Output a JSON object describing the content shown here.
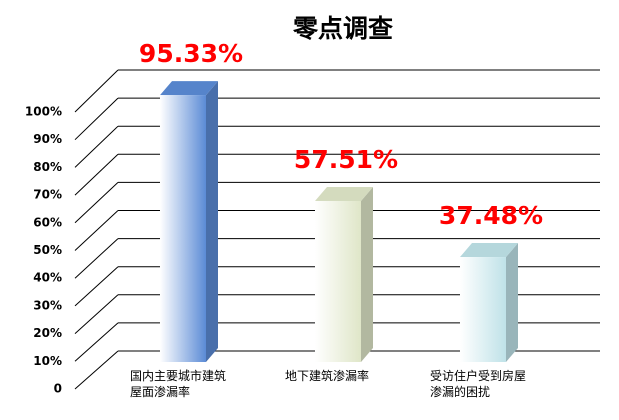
{
  "chart_data": {
    "type": "bar3d",
    "title": "零点调查",
    "categories": [
      "国内主要城市建筑屋面渗漏率",
      "地下建筑渗漏率",
      "受访住户受到房屋渗漏的困扰"
    ],
    "values": [
      95.33,
      57.51,
      37.48
    ],
    "value_labels": [
      "95.33%",
      "57.51%",
      "37.48%"
    ],
    "colors": [
      "#5b8bd6",
      "#dfe6c8",
      "#bfe2e8"
    ],
    "ylim": [
      0,
      100
    ],
    "yticks": [
      0,
      {
        "value": 10,
        "label": "10%"
      },
      {
        "value": 20,
        "label": "20%"
      },
      {
        "value": 30,
        "label": "30%"
      },
      {
        "value": 40,
        "label": "40%"
      },
      {
        "value": 50,
        "label": "50%"
      },
      {
        "value": 60,
        "label": "60%"
      },
      {
        "value": 70,
        "label": "70%"
      },
      {
        "value": 80,
        "label": "80%"
      },
      {
        "value": 90,
        "label": "90%"
      },
      {
        "value": 100,
        "label": "100%"
      }
    ],
    "grid": true
  }
}
